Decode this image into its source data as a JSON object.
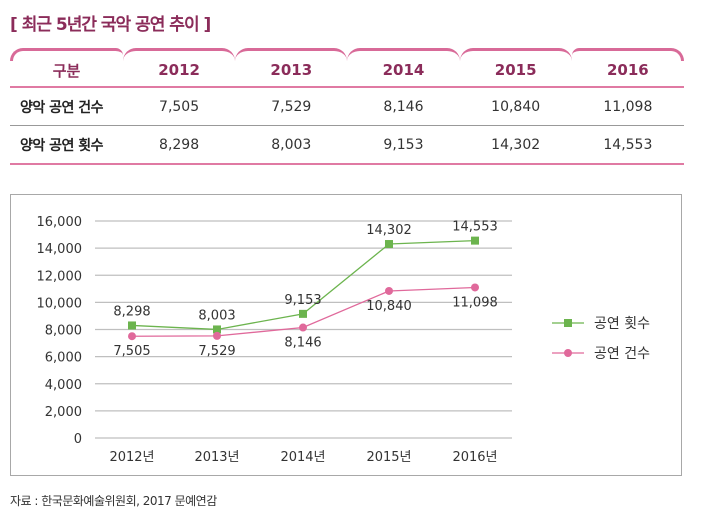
{
  "title": "[ 최근 5년간 국악 공연 추이 ]",
  "table": {
    "headers": [
      "구분",
      "2012",
      "2013",
      "2014",
      "2015",
      "2016"
    ],
    "rows": [
      {
        "label": "양악 공연 건수",
        "values": [
          "7,505",
          "7,529",
          "8,146",
          "10,840",
          "11,098"
        ]
      },
      {
        "label": "양악 공연 횟수",
        "values": [
          "8,298",
          "8,003",
          "9,153",
          "14,302",
          "14,553"
        ]
      }
    ]
  },
  "colors": {
    "accent": "#8b2c5a",
    "tab_line": "#d86a98",
    "series_green": "#6cb44e",
    "series_pink": "#e0699b",
    "grid": "#bfbfbf"
  },
  "chart_data": {
    "type": "line",
    "categories": [
      "2012년",
      "2013년",
      "2014년",
      "2015년",
      "2016년"
    ],
    "series": [
      {
        "name": "공연 횟수",
        "marker": "square",
        "color": "#6cb44e",
        "values": [
          8298,
          8003,
          9153,
          14302,
          14553
        ],
        "labels": [
          "8,298",
          "8,003",
          "9,153",
          "14,302",
          "14,553"
        ],
        "label_position": "above"
      },
      {
        "name": "공연 건수",
        "marker": "circle",
        "color": "#e0699b",
        "values": [
          7505,
          7529,
          8146,
          10840,
          11098
        ],
        "labels": [
          "7,505",
          "7,529",
          "8,146",
          "10,840",
          "11,098"
        ],
        "label_position": "below"
      }
    ],
    "ylim": [
      0,
      16000
    ],
    "yticks": [
      0,
      2000,
      4000,
      6000,
      8000,
      10000,
      12000,
      14000,
      16000
    ],
    "ytick_labels": [
      "0",
      "2,000",
      "4,000",
      "6,000",
      "8,000",
      "10,000",
      "12,000",
      "14,000",
      "16,000"
    ],
    "grid": true,
    "legend": "right",
    "title": "",
    "xlabel": "",
    "ylabel": ""
  },
  "source": "자료 : 한국문화예술위원회, 2017 문예연감"
}
